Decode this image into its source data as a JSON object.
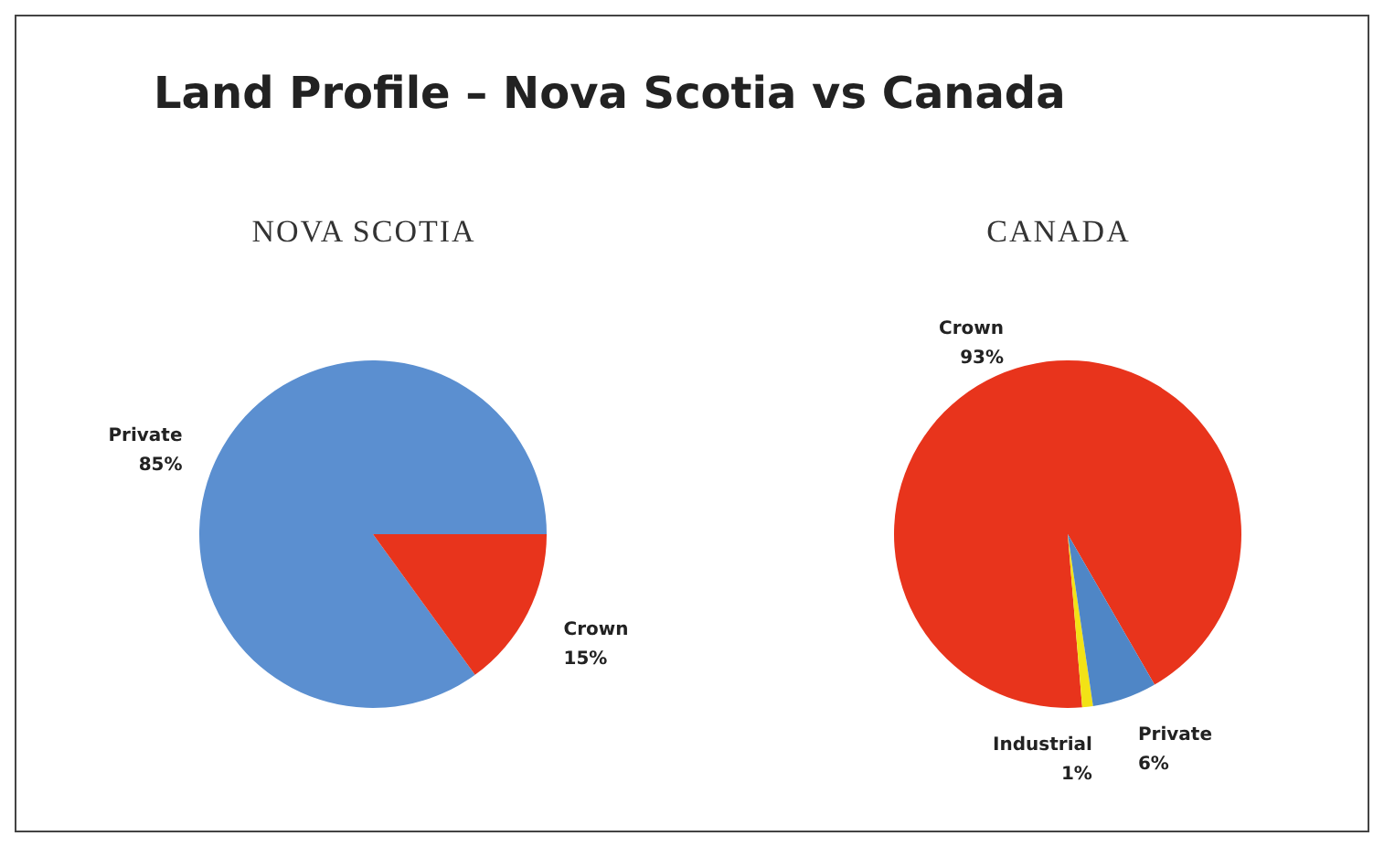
{
  "chart_data": [
    {
      "type": "pie",
      "title": "Land Profile – Nova Scotia vs Canada",
      "subtitle": "NOVA SCOTIA",
      "categories": [
        "Private",
        "Crown"
      ],
      "values": [
        85,
        15
      ],
      "value_labels": [
        "85%",
        "15%"
      ],
      "colors": [
        "#5b8fd0",
        "#e8341c"
      ]
    },
    {
      "type": "pie",
      "title": "CANADA",
      "categories": [
        "Crown",
        "Industrial",
        "Private"
      ],
      "values": [
        93,
        1,
        6
      ],
      "value_labels": [
        "93%",
        "1%",
        "6%"
      ],
      "colors": [
        "#e8341c",
        "#f2e216",
        "#4f86c6"
      ]
    }
  ]
}
